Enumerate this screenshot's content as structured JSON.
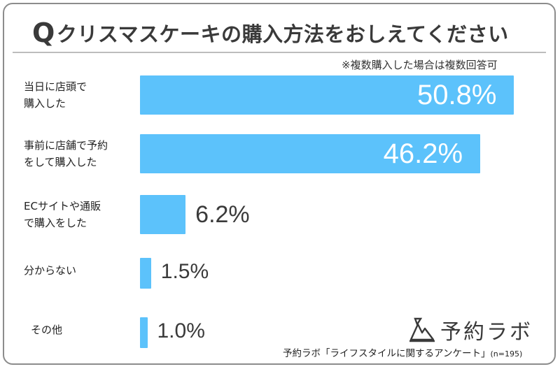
{
  "title": "クリスマスケーキの購入方法をおしえてください",
  "title_prefix": "Q",
  "note": "※複数購入した場合は複数回答可",
  "logo_text": "予約ラボ",
  "source": "予約ラボ「ライフスタイルに関するアンケート」",
  "sample_size": "(n=195)",
  "colors": {
    "bar": "#5cc2fb",
    "text": "#3a3a3a",
    "border": "#8c8c8c"
  },
  "chart_data": {
    "type": "bar",
    "orientation": "horizontal",
    "title": "クリスマスケーキの購入方法をおしえてください",
    "categories": [
      "当日に店頭で\n購入した",
      "事前に店舗で予約\nをして購入した",
      "ECサイトや通販\nで購入をした",
      "分からない",
      "その他"
    ],
    "values": [
      50.8,
      46.2,
      6.2,
      1.5,
      1.0
    ],
    "value_labels": [
      "50.8%",
      "46.2%",
      "6.2%",
      "1.5%",
      "1.0%"
    ],
    "unit": "%",
    "xlim": [
      0,
      60
    ],
    "grid": false
  }
}
